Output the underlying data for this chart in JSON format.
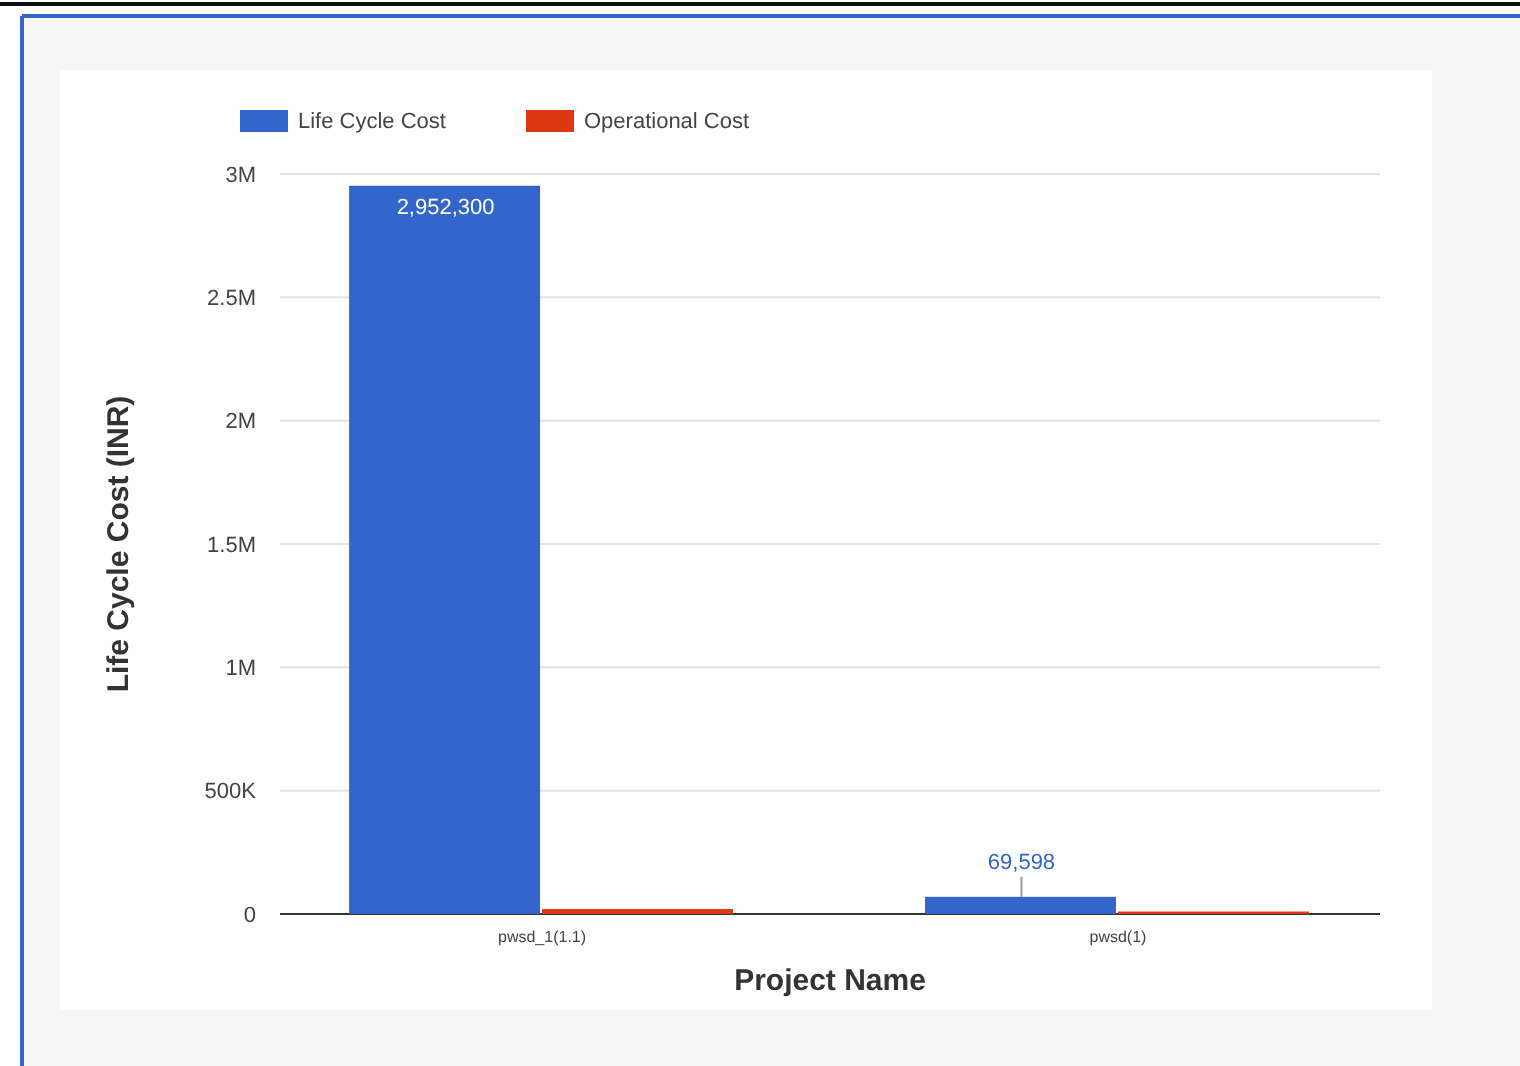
{
  "chart_data": {
    "type": "bar",
    "xlabel": "Project Name",
    "ylabel": "Life Cycle Cost (INR)",
    "categories": [
      "pwsd_1(1.1)",
      "pwsd(1)"
    ],
    "series": [
      {
        "name": "Life Cycle Cost",
        "color": "#3366cc",
        "values": [
          2952300,
          69598
        ],
        "value_labels": [
          "2,952,300",
          "69,598"
        ]
      },
      {
        "name": "Operational Cost",
        "color": "#dc3912",
        "values": [
          20000,
          10000
        ]
      }
    ],
    "ylim": [
      0,
      3000000
    ],
    "yticks": [
      {
        "value": 0,
        "label": "0"
      },
      {
        "value": 500000,
        "label": "500K"
      },
      {
        "value": 1000000,
        "label": "1M"
      },
      {
        "value": 1500000,
        "label": "1.5M"
      },
      {
        "value": 2000000,
        "label": "2M"
      },
      {
        "value": 2500000,
        "label": "2.5M"
      },
      {
        "value": 3000000,
        "label": "3M"
      }
    ],
    "grid": true,
    "legend": "top left"
  }
}
